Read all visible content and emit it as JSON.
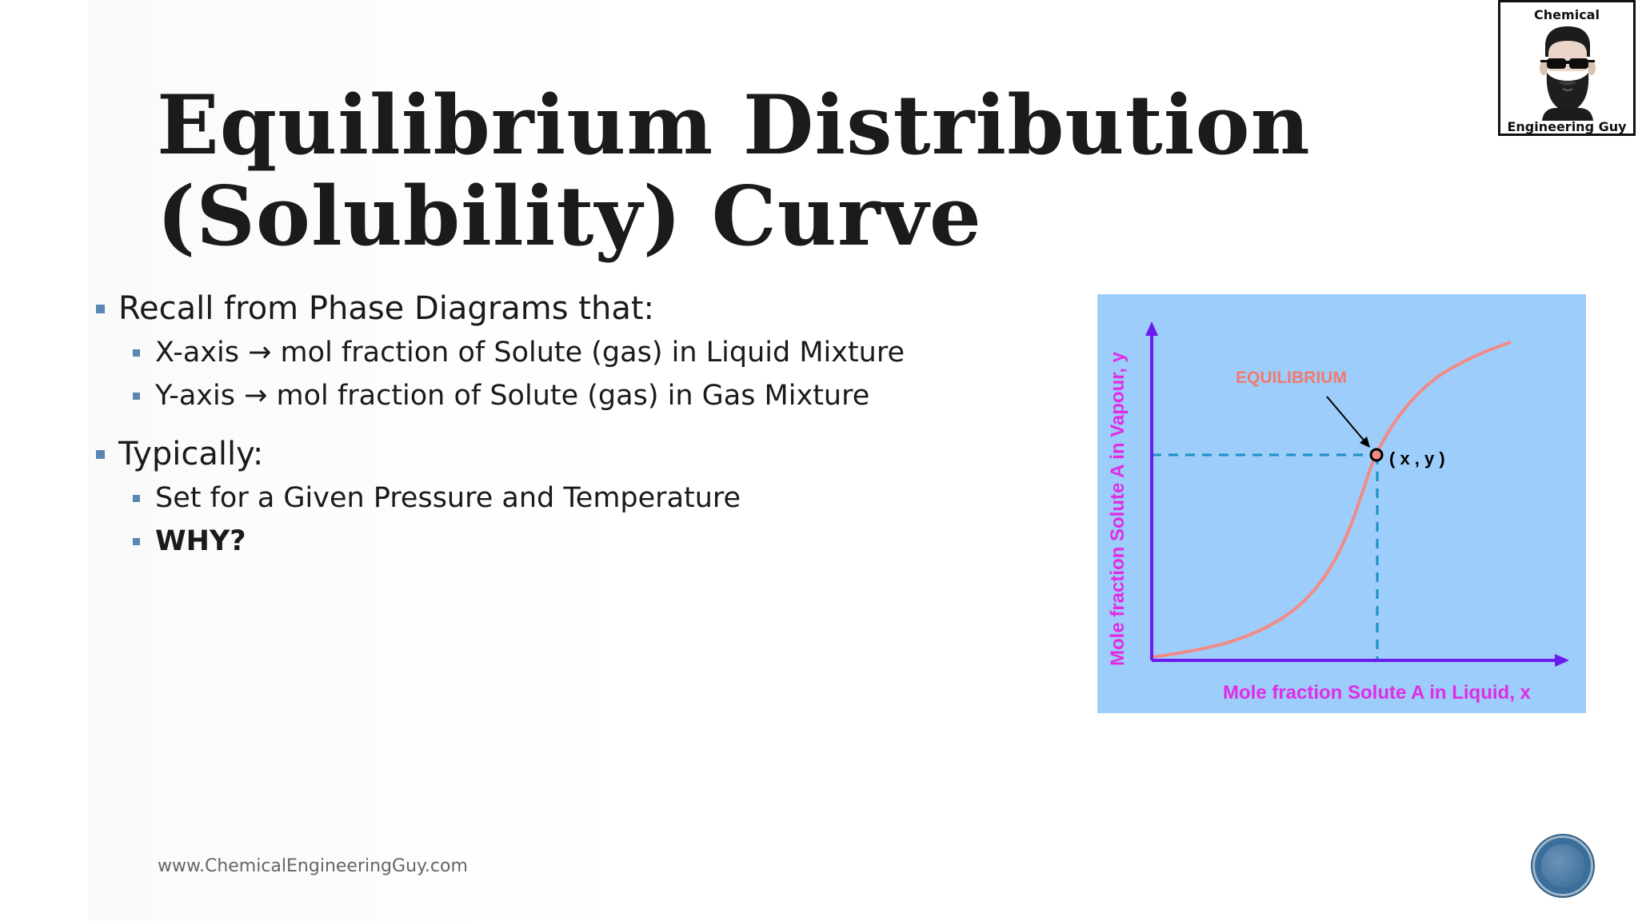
{
  "slide": {
    "title_line1": "Equilibrium Distribution",
    "title_line2": "(Solubility) Curve",
    "bullets": [
      {
        "text": "Recall from Phase Diagrams that:",
        "sub": [
          "X-axis → mol fraction of Solute (gas) in Liquid Mixture",
          "Y-axis → mol fraction of Solute (gas) in Gas Mixture"
        ]
      },
      {
        "text": "Typically:",
        "sub": [
          "Set for a Given Pressure and Temperature",
          "WHY?"
        ]
      }
    ],
    "footer": "www.ChemicalEngineeringGuy.com"
  },
  "logo": {
    "top_text": "Chemical",
    "bottom_text": "Engineering Guy"
  },
  "diagram": {
    "equilibrium_label": "EQUILIBRIUM",
    "point_label": "( x , y )",
    "x_axis_label": "Mole fraction Solute A in Liquid, x",
    "y_axis_label": "Mole fraction Solute A in Vapour, y",
    "colors": {
      "background": "#9dcdfa",
      "axes": "#6a1cf0",
      "curve": "#f28a86",
      "guide": "#1a8fc8",
      "label": "#e22be6",
      "equilibrium_text": "#f07a6f"
    }
  }
}
